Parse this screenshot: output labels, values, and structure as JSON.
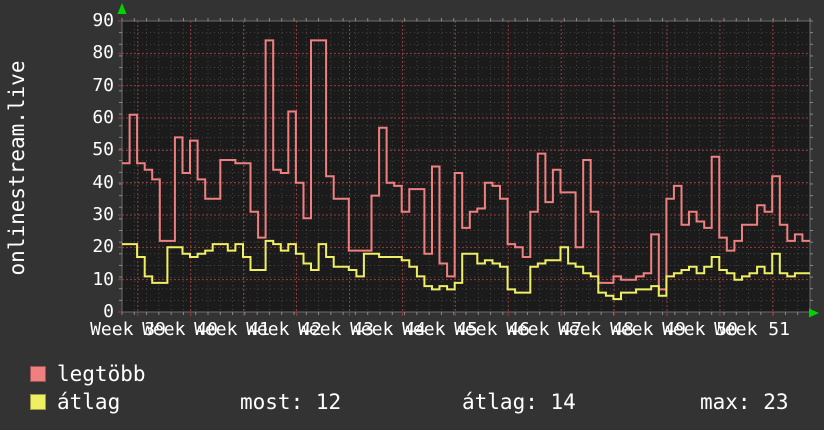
{
  "window": {
    "left_vertical_title": "onlinestream.live"
  },
  "colors": {
    "background": "#333333",
    "plot_background": "#1b1b1b",
    "grid_minor": "#454545",
    "grid_major_red": "#9e3b3b",
    "plot_border": "#6e6e6e",
    "tick_gray": "#8a8a8a",
    "axis_arrow_green": "#00d400",
    "text_white": "#ffffff",
    "series_red": "#f08080",
    "series_yellow": "#efef63"
  },
  "chart_data": {
    "type": "line",
    "step": true,
    "title": "",
    "xlabel": "",
    "ylabel": "onlinestream.live",
    "grid": "on",
    "x_axis": {
      "labels": [
        "Week 39",
        "Week 40",
        "Week 41",
        "Week 42",
        "Week 43",
        "Week 44",
        "Week 45",
        "Week 46",
        "Week 47",
        "Week 48",
        "Week 49",
        "Week 50",
        "Week 51"
      ],
      "points_per_series": 91,
      "resolution": "1 day"
    },
    "y_axis": {
      "min": 0,
      "max": 90,
      "ticks": [
        0,
        10,
        20,
        30,
        40,
        50,
        60,
        70,
        80,
        90
      ]
    },
    "series": [
      {
        "name": "legtöbb",
        "color": "#f08080",
        "values": [
          46,
          61,
          46,
          44,
          41,
          22,
          22,
          54,
          43,
          53,
          41,
          35,
          35,
          47,
          47,
          46,
          46,
          31,
          23,
          84,
          44,
          43,
          62,
          40,
          29,
          84,
          84,
          42,
          35,
          35,
          19,
          19,
          19,
          36,
          57,
          40,
          39,
          31,
          38,
          38,
          18,
          45,
          15,
          11,
          43,
          26,
          31,
          32,
          40,
          39,
          35,
          21,
          20,
          17,
          31,
          49,
          34,
          44,
          37,
          37,
          20,
          47,
          31,
          9,
          9,
          11,
          10,
          10,
          11,
          12,
          24,
          7,
          35,
          39,
          27,
          31,
          28,
          26,
          48,
          23,
          19,
          22,
          27,
          27,
          33,
          31,
          42,
          27,
          22,
          24,
          22
        ]
      },
      {
        "name": "átlag",
        "color": "#efef63",
        "values": [
          21,
          21,
          17,
          11,
          9,
          9,
          20,
          20,
          18,
          17,
          18,
          19,
          21,
          21,
          19,
          21,
          17,
          13,
          13,
          22,
          21,
          19,
          21,
          18,
          15,
          13,
          21,
          17,
          14,
          14,
          13,
          11,
          18,
          18,
          17,
          17,
          17,
          16,
          14,
          11,
          8,
          7,
          8,
          7,
          9,
          18,
          18,
          15,
          16,
          15,
          14,
          7,
          6,
          6,
          14,
          15,
          16,
          16,
          20,
          15,
          14,
          12,
          11,
          6,
          5,
          4,
          6,
          6,
          7,
          7,
          8,
          5,
          11,
          12,
          13,
          14,
          12,
          14,
          17,
          13,
          12,
          10,
          11,
          12,
          14,
          12,
          18,
          12,
          11,
          12,
          12
        ]
      }
    ],
    "legend_position": "bottom"
  },
  "legend": {
    "series": [
      {
        "label": "legtöbb",
        "color": "#f08080"
      },
      {
        "label": "átlag",
        "color": "#efef63"
      }
    ],
    "stats": [
      {
        "text": "most: 12"
      },
      {
        "text": "átlag: 14"
      },
      {
        "text": "max: 23"
      }
    ]
  }
}
